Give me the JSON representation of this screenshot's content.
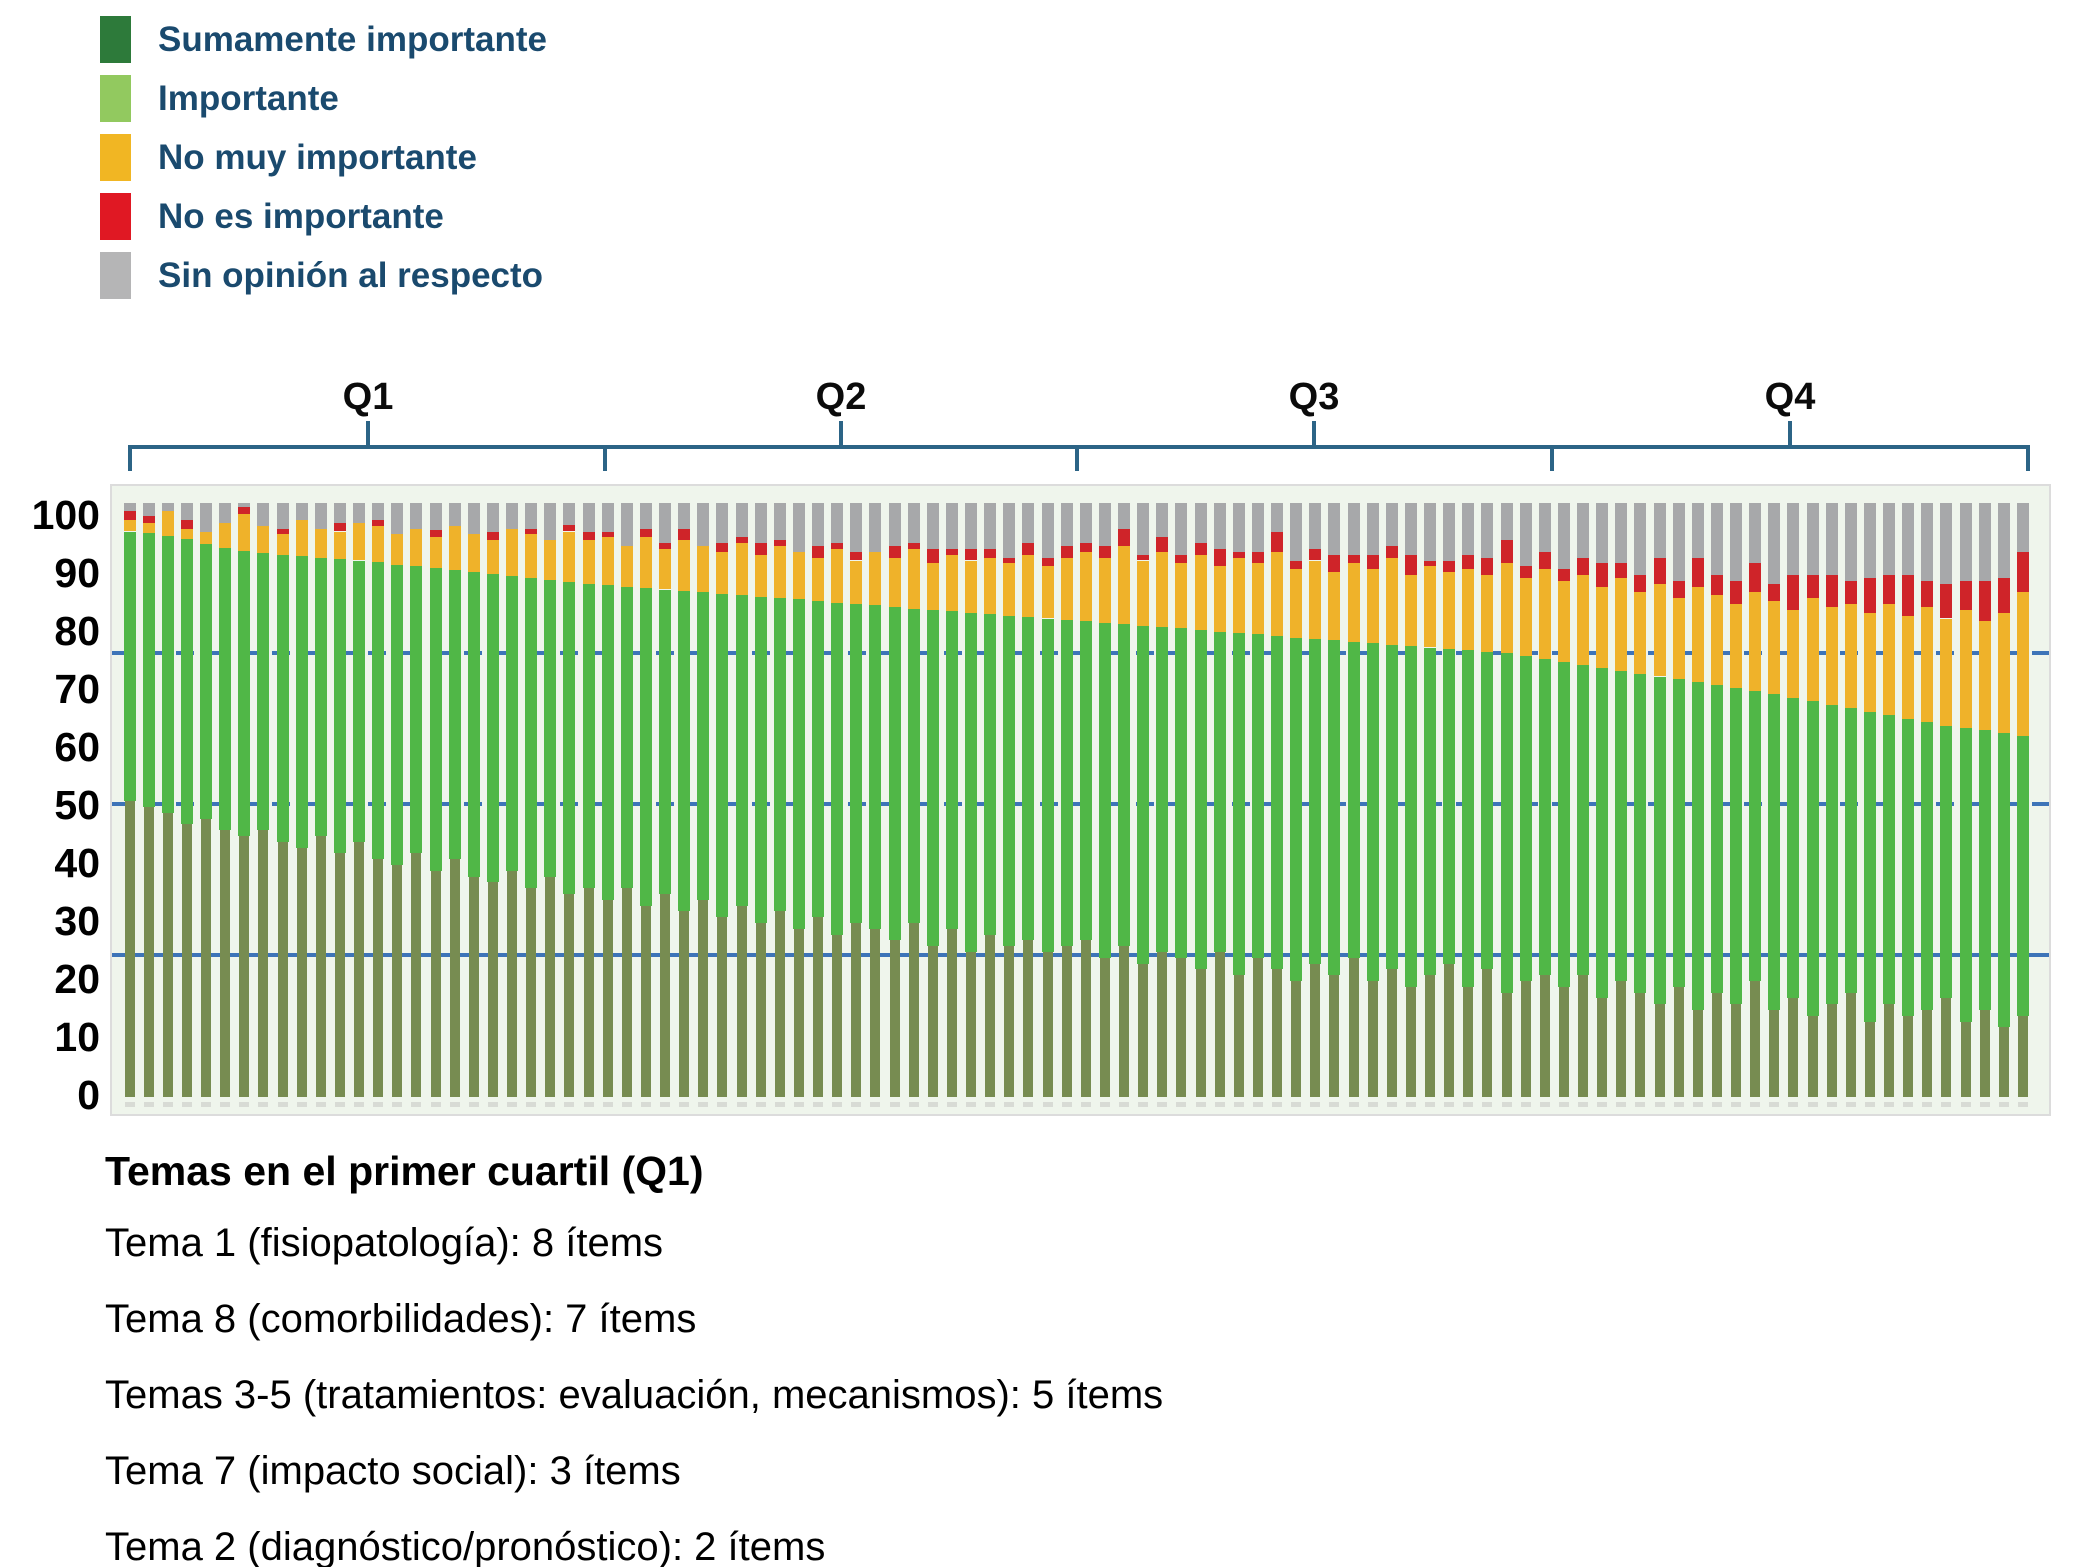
{
  "legend": {
    "items": [
      {
        "label": "Sumamente importante",
        "color": "#2d7a3a"
      },
      {
        "label": "Importante",
        "color": "#92c95f"
      },
      {
        "label": "No muy importante",
        "color": "#f1b623"
      },
      {
        "label": "No es importante",
        "color": "#e01823"
      },
      {
        "label": "Sin opinión al respecto",
        "color": "#b5b5b6"
      }
    ]
  },
  "quartile_labels": [
    "Q1",
    "Q2",
    "Q3",
    "Q4"
  ],
  "axis": {
    "ticks": [
      100,
      90,
      80,
      70,
      60,
      50,
      40,
      30,
      20,
      10,
      0
    ]
  },
  "caption": {
    "title": "Temas en el primer cuartil (Q1)",
    "lines": [
      "Tema 1 (fisiopatología): 8 ítems",
      "Tema 8 (comorbilidades): 7 ítems",
      "Temas 3-5 (tratamientos: evaluación, mecanismos): 5 ítems",
      "Tema 7 (impacto social): 3 ítems",
      "Tema 2 (diagnóstico/pronóstico): 2 ítems"
    ]
  },
  "colors": {
    "bar_dark_green": "#778c51",
    "bar_light_green": "#50b747",
    "bar_yellow": "#efb22a",
    "bar_red": "#cf2429",
    "bar_gray": "#a7a8aa",
    "reference_line": "#3d74b8",
    "bracket": "#2c6486",
    "legend_text": "#1a4a6e",
    "plot_background": "#eff5ec"
  },
  "chart_data": {
    "type": "bar",
    "subtype": "stacked-percentage-items",
    "n_bars": 100,
    "bars_per_quartile": 25,
    "ylim": [
      0,
      105
    ],
    "bar_total_top": 102.5,
    "grid": "off",
    "legend_position": "top-left",
    "reference_lines": [
      {
        "value": 76.5,
        "style": "dashed"
      },
      {
        "value": 50.5,
        "style": "dashed"
      },
      {
        "value": 24.5,
        "style": "solid"
      }
    ],
    "series_order": [
      "Sumamente importante",
      "Importante",
      "No muy importante",
      "No es importante",
      "Sin opinión al respecto"
    ],
    "dark_green_top": [
      51,
      50,
      49,
      47,
      48,
      46,
      45,
      46,
      44,
      43,
      45,
      42,
      44,
      41,
      40,
      42,
      39,
      41,
      38,
      37,
      39,
      36,
      38,
      35,
      36,
      34,
      36,
      33,
      35,
      32,
      34,
      31,
      33,
      30,
      32,
      29,
      31,
      28,
      30,
      29,
      27,
      30,
      26,
      29,
      25,
      28,
      26,
      27,
      25,
      26,
      27,
      24,
      26,
      23,
      25,
      24,
      22,
      25,
      21,
      24,
      22,
      20,
      23,
      21,
      24,
      20,
      22,
      19,
      21,
      23,
      19,
      22,
      18,
      20,
      21,
      19,
      21,
      17,
      20,
      18,
      16,
      19,
      15,
      18,
      16,
      20,
      15,
      17,
      14,
      16,
      18,
      13,
      16,
      14,
      15,
      17,
      13,
      15,
      12,
      14
    ],
    "green_top": [
      97.5,
      97.2,
      96.8,
      96.2,
      95.3,
      94.6,
      94.2,
      93.8,
      93.5,
      93.2,
      93.0,
      92.8,
      92.5,
      92.2,
      91.8,
      91.5,
      91.2,
      90.8,
      90.5,
      90.2,
      89.8,
      89.5,
      89.2,
      88.8,
      88.5,
      88.2,
      88.0,
      87.8,
      87.5,
      87.2,
      87.0,
      86.8,
      86.5,
      86.2,
      86.0,
      85.8,
      85.5,
      85.2,
      85.0,
      84.8,
      84.5,
      84.2,
      84.0,
      83.8,
      83.5,
      83.2,
      83.0,
      82.8,
      82.5,
      82.2,
      82.0,
      81.8,
      81.5,
      81.2,
      81.0,
      80.8,
      80.5,
      80.2,
      80.0,
      79.8,
      79.5,
      79.2,
      79.0,
      78.8,
      78.5,
      78.2,
      78.0,
      77.8,
      77.5,
      77.2,
      77.0,
      76.8,
      76.5,
      76.0,
      75.5,
      75.0,
      74.5,
      74.0,
      73.5,
      73.0,
      72.5,
      72.0,
      71.5,
      71.0,
      70.5,
      70.0,
      69.4,
      68.8,
      68.2,
      67.6,
      67.0,
      66.4,
      65.8,
      65.2,
      64.6,
      64.0,
      63.6,
      63.2,
      62.8,
      62.3
    ],
    "yellow_top": [
      99.5,
      99.0,
      101.0,
      98.0,
      97.5,
      99.0,
      100.5,
      98.5,
      97.0,
      99.5,
      98.0,
      97.5,
      99.0,
      98.5,
      97.0,
      98.0,
      96.5,
      98.5,
      97.0,
      96.0,
      98.0,
      97.0,
      96.0,
      97.5,
      96.0,
      96.5,
      95.0,
      96.5,
      94.5,
      96.0,
      95.0,
      94.0,
      95.5,
      93.5,
      95.0,
      94.0,
      93.0,
      94.5,
      92.5,
      94.0,
      93.0,
      94.5,
      92.0,
      93.5,
      92.5,
      93.0,
      92.0,
      93.5,
      91.5,
      93.0,
      94.0,
      93.0,
      95.0,
      92.5,
      94.0,
      92.0,
      93.5,
      91.5,
      93.0,
      92.0,
      94.0,
      91.0,
      92.5,
      90.5,
      92.0,
      91.0,
      93.0,
      90.0,
      91.5,
      90.5,
      91.0,
      90.0,
      92.0,
      89.5,
      91.0,
      89.0,
      90.0,
      88.0,
      89.5,
      87.0,
      88.5,
      86.0,
      88.0,
      86.5,
      85.0,
      87.0,
      85.5,
      84.0,
      86.0,
      84.5,
      85.0,
      83.5,
      85.0,
      83.0,
      84.5,
      82.5,
      84.0,
      82.0,
      83.5,
      87.0
    ],
    "red_amount": [
      1.5,
      1.2,
      0,
      1.5,
      0,
      0,
      1.2,
      0,
      1.0,
      0,
      0,
      1.5,
      0,
      1.0,
      0,
      0,
      1.2,
      0,
      0,
      1.5,
      0,
      1.0,
      0,
      1.2,
      1.5,
      1.0,
      0,
      1.5,
      1.0,
      2.0,
      0,
      1.5,
      1.0,
      2.0,
      1.0,
      0,
      2.0,
      1.0,
      1.5,
      0,
      2.0,
      1.0,
      2.5,
      1.0,
      2.0,
      1.5,
      1.0,
      2.0,
      1.5,
      2.0,
      1.5,
      2.0,
      3.0,
      1.0,
      2.5,
      1.5,
      2.0,
      3.0,
      1.0,
      2.0,
      3.5,
      1.5,
      2.0,
      3.0,
      1.5,
      2.5,
      2.0,
      3.5,
      1.0,
      2.0,
      2.5,
      3.0,
      4.0,
      2.0,
      3.0,
      2.0,
      3.0,
      4.0,
      2.5,
      3.0,
      4.5,
      3.0,
      5.0,
      3.5,
      4.0,
      5.0,
      3.0,
      6.0,
      4.0,
      5.5,
      4.0,
      6.0,
      5.0,
      7.0,
      4.5,
      6.0,
      5.0,
      7.0,
      6.0,
      7.0
    ]
  }
}
